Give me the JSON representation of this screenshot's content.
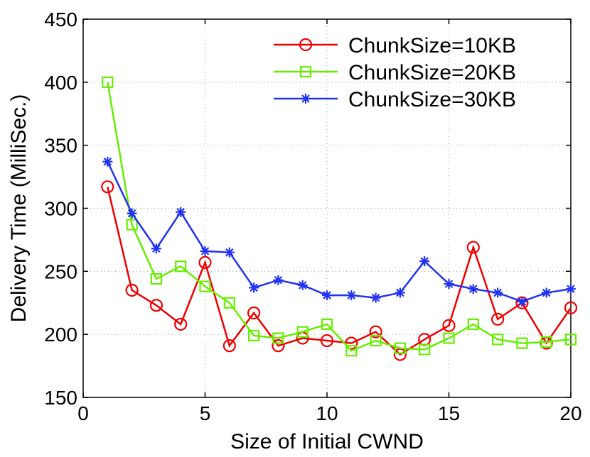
{
  "chart_data": {
    "type": "line",
    "title": "",
    "xlabel": "Size of Initial CWND",
    "ylabel": "Delivery Time (MilliSec.)",
    "xlim": [
      0,
      20
    ],
    "ylim": [
      150,
      450
    ],
    "xticks": [
      0,
      5,
      10,
      15,
      20
    ],
    "yticks": [
      150,
      200,
      250,
      300,
      350,
      400,
      450
    ],
    "grid": true,
    "legend_position": "top-right",
    "x": [
      1,
      2,
      3,
      4,
      5,
      6,
      7,
      8,
      9,
      10,
      11,
      12,
      13,
      14,
      15,
      16,
      17,
      18,
      19,
      20
    ],
    "series": [
      {
        "name": "ChunkSize=10KB",
        "color": "#ee0000",
        "marker": "circle",
        "values": [
          317,
          235,
          223,
          208,
          257,
          191,
          217,
          191,
          197,
          195,
          193,
          202,
          184,
          196,
          207,
          269,
          212,
          225,
          193,
          221
        ]
      },
      {
        "name": "ChunkSize=20KB",
        "color": "#66ee00",
        "marker": "square",
        "values": [
          400,
          287,
          244,
          254,
          238,
          225,
          199,
          197,
          202,
          208,
          187,
          195,
          189,
          188,
          197,
          208,
          196,
          193,
          194,
          196
        ]
      },
      {
        "name": "ChunkSize=30KB",
        "color": "#2233ee",
        "marker": "star",
        "values": [
          337,
          296,
          268,
          297,
          266,
          265,
          237,
          243,
          239,
          231,
          231,
          229,
          233,
          258,
          240,
          236,
          233,
          226,
          233,
          236
        ]
      }
    ]
  }
}
